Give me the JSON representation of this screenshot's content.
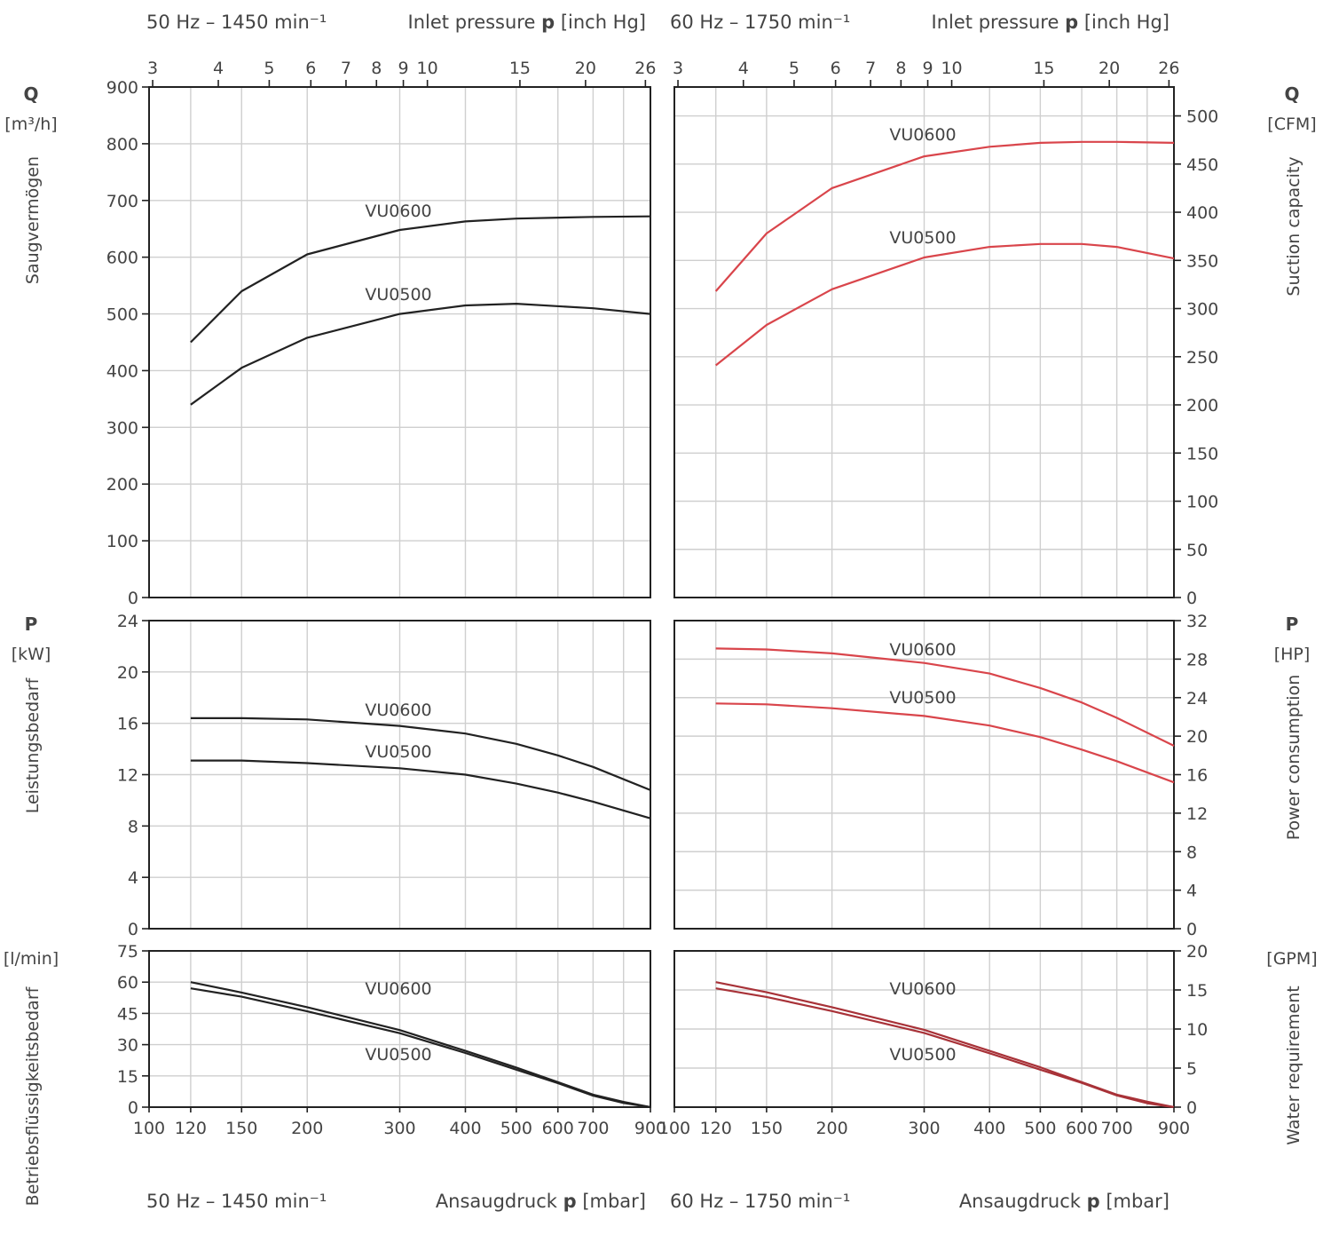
{
  "headers": {
    "top_left_freq": "50 Hz – 1450 min⁻¹",
    "top_left_axis_prefix": "Inlet pressure ",
    "top_left_axis_symbol": "p",
    "top_left_axis_unit": " [inch Hg]",
    "top_right_freq": "60 Hz – 1750 min⁻¹",
    "top_right_axis_prefix": "Inlet pressure ",
    "top_right_axis_symbol": "p",
    "top_right_axis_unit": " [inch Hg]",
    "bottom_left_freq": "50 Hz – 1450 min⁻¹",
    "bottom_left_axis_prefix": "Ansaugdruck ",
    "bottom_left_axis_symbol": "p",
    "bottom_left_axis_unit": " [mbar]",
    "bottom_right_freq": "60 Hz – 1750 min⁻¹",
    "bottom_right_axis_prefix": "Ansaugdruck ",
    "bottom_right_axis_symbol": "p",
    "bottom_right_axis_unit": " [mbar]"
  },
  "left_labels": {
    "q_symbol": "Q",
    "q_unit": "[m³/h]",
    "q_name": "Saugvermögen",
    "p_symbol": "P",
    "p_unit": "[kW]",
    "p_name": "Leistungsbedarf",
    "w_unit": "[l/min]",
    "w_name": "Betriebsflüssigkeitsbedarf"
  },
  "right_labels": {
    "q_symbol": "Q",
    "q_unit": "[CFM]",
    "q_name": "Suction capacity",
    "p_symbol": "P",
    "p_unit": "[HP]",
    "p_name": "Power consumption",
    "w_unit": "[GPM]",
    "w_name": "Water requirement"
  },
  "chart_data": {
    "type": "line",
    "x_scale": "log",
    "x_bottom_label": "Ansaugdruck p [mbar]",
    "x_bottom_range": [
      100,
      900
    ],
    "x_bottom_ticks": [
      100,
      120,
      150,
      200,
      300,
      400,
      500,
      600,
      700,
      900
    ],
    "x_top_label": "Inlet pressure p [inch Hg]",
    "x_top_ticks": [
      3,
      4,
      5,
      6,
      7,
      8,
      9,
      10,
      15,
      20,
      26
    ],
    "grid": true,
    "colors": {
      "left_curves": "#222222",
      "right_curves": "#d9454b",
      "right_water": "#a83238",
      "grid": "#cfcfcf",
      "axis": "#222222"
    },
    "panels": {
      "left_q": {
        "y_label": "Q [m³/h]",
        "y_range": [
          0,
          900
        ],
        "y_ticks": [
          0,
          100,
          200,
          300,
          400,
          500,
          600,
          700,
          800,
          900
        ],
        "series": [
          {
            "name": "VU0600",
            "x": [
              120,
              150,
              200,
              300,
              400,
              500,
              700,
              900
            ],
            "y": [
              450,
              540,
              605,
              648,
              663,
              668,
              671,
              672
            ]
          },
          {
            "name": "VU0500",
            "x": [
              120,
              150,
              200,
              300,
              400,
              500,
              700,
              900
            ],
            "y": [
              340,
              405,
              458,
              500,
              515,
              518,
              510,
              500
            ]
          }
        ]
      },
      "right_q": {
        "y_label": "Q [CFM]",
        "y_range": [
          0,
          530
        ],
        "y_ticks": [
          0,
          50,
          100,
          150,
          200,
          250,
          300,
          350,
          400,
          450,
          500
        ],
        "series": [
          {
            "name": "VU0600",
            "x": [
              120,
              150,
              200,
              300,
              400,
              500,
              600,
              700,
              900
            ],
            "y": [
              318,
              378,
              425,
              458,
              468,
              472,
              473,
              473,
              472
            ]
          },
          {
            "name": "VU0500",
            "x": [
              120,
              150,
              200,
              300,
              400,
              500,
              600,
              700,
              900
            ],
            "y": [
              241,
              283,
              320,
              353,
              364,
              367,
              367,
              364,
              352
            ]
          }
        ]
      },
      "left_p": {
        "y_label": "P [kW]",
        "y_range": [
          0,
          24
        ],
        "y_ticks": [
          0,
          4,
          8,
          12,
          16,
          20,
          24
        ],
        "series": [
          {
            "name": "VU0600",
            "x": [
              120,
              150,
              200,
              300,
              400,
              500,
              600,
              700,
              900
            ],
            "y": [
              16.4,
              16.4,
              16.3,
              15.8,
              15.2,
              14.4,
              13.5,
              12.6,
              10.8
            ]
          },
          {
            "name": "VU0500",
            "x": [
              120,
              150,
              200,
              300,
              400,
              500,
              600,
              700,
              900
            ],
            "y": [
              13.1,
              13.1,
              12.9,
              12.5,
              12.0,
              11.3,
              10.6,
              9.9,
              8.6
            ]
          }
        ]
      },
      "right_p": {
        "y_label": "P [HP]",
        "y_range": [
          0,
          32
        ],
        "y_ticks": [
          0,
          4,
          8,
          12,
          16,
          20,
          24,
          28,
          32
        ],
        "series": [
          {
            "name": "VU0600",
            "x": [
              120,
              150,
              200,
              300,
              400,
              500,
              600,
              700,
              900
            ],
            "y": [
              29.1,
              29.0,
              28.6,
              27.6,
              26.5,
              25.0,
              23.5,
              21.9,
              19.0
            ]
          },
          {
            "name": "VU0500",
            "x": [
              120,
              150,
              200,
              300,
              400,
              500,
              600,
              700,
              900
            ],
            "y": [
              23.4,
              23.3,
              22.9,
              22.1,
              21.1,
              19.9,
              18.6,
              17.4,
              15.2
            ]
          }
        ]
      },
      "left_w": {
        "y_label": "[l/min]",
        "y_range": [
          0,
          75
        ],
        "y_ticks": [
          0,
          15,
          30,
          45,
          60,
          75
        ],
        "series": [
          {
            "name": "VU0600",
            "x": [
              120,
              150,
              200,
              300,
              400,
              500,
              600,
              700,
              800,
              900
            ],
            "y": [
              60,
              55,
              48,
              37,
              27,
              19,
              12,
              6,
              2.5,
              0
            ]
          },
          {
            "name": "VU0500",
            "x": [
              120,
              150,
              200,
              300,
              400,
              500,
              600,
              700,
              800,
              900
            ],
            "y": [
              57,
              53,
              46,
              35.5,
              26,
              18,
              11.5,
              5.5,
              2,
              0
            ]
          }
        ]
      },
      "right_w": {
        "y_label": "[GPM]",
        "y_range": [
          0,
          20
        ],
        "y_ticks": [
          0,
          5,
          10,
          15,
          20
        ],
        "series": [
          {
            "name": "VU0600",
            "x": [
              120,
              150,
              200,
              300,
              400,
              500,
              600,
              700,
              800,
              900
            ],
            "y": [
              16.0,
              14.7,
              12.8,
              9.9,
              7.2,
              5.1,
              3.2,
              1.6,
              0.7,
              0
            ]
          },
          {
            "name": "VU0500",
            "x": [
              120,
              150,
              200,
              300,
              400,
              500,
              600,
              700,
              800,
              900
            ],
            "y": [
              15.2,
              14.1,
              12.3,
              9.5,
              6.9,
              4.8,
              3.1,
              1.5,
              0.5,
              0
            ]
          }
        ]
      }
    }
  }
}
